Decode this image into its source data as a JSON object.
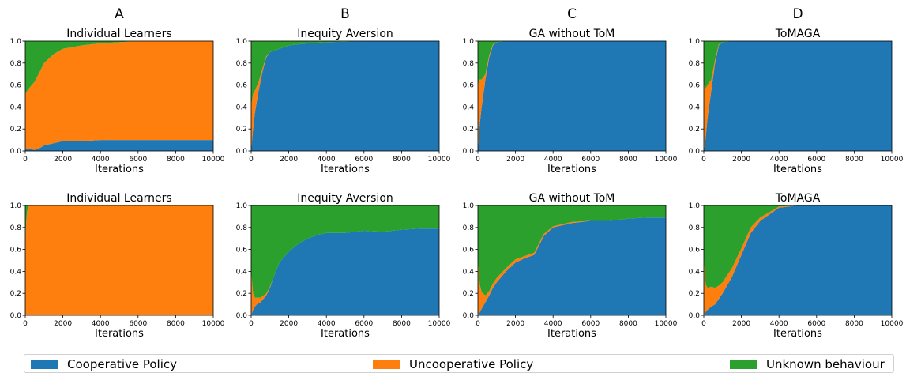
{
  "chart_data": {
    "type": "area",
    "stacked": true,
    "x_range": [
      0,
      10000
    ],
    "y_range": [
      0,
      1
    ],
    "xlabel": "Iterations",
    "xticks": [
      0,
      2000,
      4000,
      6000,
      8000,
      10000
    ],
    "yticks": [
      0.0,
      0.2,
      0.4,
      0.6,
      0.8,
      1.0
    ],
    "column_letters": [
      "A",
      "B",
      "C",
      "D"
    ],
    "colors": {
      "Cooperative Policy": "#1f77b4",
      "Uncooperative Policy": "#ff7f0e",
      "Unknown behaviour": "#2ca02c"
    },
    "legend": [
      "Cooperative Policy",
      "Uncooperative Policy",
      "Unknown behaviour"
    ],
    "panels": [
      {
        "row": 0,
        "col": 0,
        "title": "Individual Learners",
        "x": [
          0,
          200,
          500,
          800,
          1000,
          1500,
          2000,
          3000,
          4000,
          6000,
          8000,
          10000
        ],
        "series": [
          {
            "name": "Cooperative Policy",
            "values": [
              0.02,
              0.02,
              0.01,
              0.03,
              0.05,
              0.07,
              0.09,
              0.09,
              0.1,
              0.1,
              0.1,
              0.1
            ]
          },
          {
            "name": "Uncooperative Policy",
            "values": [
              0.5,
              0.55,
              0.62,
              0.7,
              0.75,
              0.81,
              0.84,
              0.87,
              0.88,
              0.9,
              0.9,
              0.9
            ]
          }
        ]
      },
      {
        "row": 0,
        "col": 1,
        "title": "Inequity Aversion",
        "x": [
          0,
          100,
          200,
          400,
          600,
          800,
          1000,
          1500,
          2000,
          3000,
          4000,
          6000,
          8000,
          10000
        ],
        "series": [
          {
            "name": "Cooperative Policy",
            "values": [
              0.0,
              0.2,
              0.35,
              0.55,
              0.72,
              0.85,
              0.9,
              0.93,
              0.96,
              0.98,
              0.99,
              1.0,
              1.0,
              1.0
            ]
          },
          {
            "name": "Uncooperative Policy",
            "values": [
              0.4,
              0.32,
              0.2,
              0.08,
              0.03,
              0.01,
              0.0,
              0.0,
              0.0,
              0.0,
              0.0,
              0.0,
              0.0,
              0.0
            ]
          }
        ]
      },
      {
        "row": 0,
        "col": 2,
        "title": "GA without ToM",
        "x": [
          0,
          100,
          200,
          400,
          600,
          800,
          1000,
          1500,
          2000,
          4000,
          6000,
          8000,
          10000
        ],
        "series": [
          {
            "name": "Cooperative Policy",
            "values": [
              0.0,
              0.25,
              0.4,
              0.65,
              0.85,
              0.96,
              0.99,
              1.0,
              1.0,
              1.0,
              1.0,
              1.0,
              1.0
            ]
          },
          {
            "name": "Uncooperative Policy",
            "values": [
              0.6,
              0.4,
              0.25,
              0.05,
              0.02,
              0.01,
              0.0,
              0.0,
              0.0,
              0.0,
              0.0,
              0.0,
              0.0
            ]
          }
        ]
      },
      {
        "row": 0,
        "col": 3,
        "title": "ToMAGA",
        "x": [
          0,
          100,
          200,
          400,
          600,
          800,
          1000,
          1500,
          2000,
          4000,
          6000,
          8000,
          10000
        ],
        "series": [
          {
            "name": "Cooperative Policy",
            "values": [
              0.0,
              0.12,
              0.3,
              0.55,
              0.8,
              0.96,
              0.99,
              1.0,
              1.0,
              1.0,
              1.0,
              1.0,
              1.0
            ]
          },
          {
            "name": "Uncooperative Policy",
            "values": [
              0.6,
              0.45,
              0.3,
              0.1,
              0.03,
              0.01,
              0.0,
              0.0,
              0.0,
              0.0,
              0.0,
              0.0,
              0.0
            ]
          }
        ]
      },
      {
        "row": 1,
        "col": 0,
        "title": "Individual Learners",
        "x": [
          0,
          50,
          100,
          200,
          500,
          1000,
          10000
        ],
        "series": [
          {
            "name": "Cooperative Policy",
            "values": [
              0,
              0,
              0,
              0,
              0,
              0,
              0
            ]
          },
          {
            "name": "Uncooperative Policy",
            "values": [
              0.65,
              0.85,
              0.95,
              1.0,
              1.0,
              1.0,
              1.0
            ]
          }
        ]
      },
      {
        "row": 1,
        "col": 1,
        "title": "Inequity Aversion",
        "x": [
          0,
          100,
          200,
          300,
          500,
          800,
          1000,
          1200,
          1500,
          2000,
          2500,
          3000,
          3500,
          4000,
          5000,
          6000,
          7000,
          8000,
          9000,
          10000
        ],
        "series": [
          {
            "name": "Cooperative Policy",
            "values": [
              0.0,
              0.05,
              0.08,
              0.1,
              0.12,
              0.18,
              0.25,
              0.35,
              0.48,
              0.58,
              0.65,
              0.7,
              0.73,
              0.75,
              0.75,
              0.77,
              0.76,
              0.78,
              0.79,
              0.79
            ]
          },
          {
            "name": "Uncooperative Policy",
            "values": [
              0.4,
              0.15,
              0.08,
              0.06,
              0.04,
              0.02,
              0.01,
              0.0,
              0.0,
              0.0,
              0.0,
              0.0,
              0.0,
              0.0,
              0.0,
              0.0,
              0.0,
              0.0,
              0.0,
              0.0
            ]
          }
        ]
      },
      {
        "row": 1,
        "col": 2,
        "title": "GA without ToM",
        "x": [
          0,
          100,
          200,
          400,
          600,
          800,
          1000,
          1500,
          2000,
          2500,
          3000,
          3500,
          4000,
          5000,
          6000,
          7000,
          8000,
          9000,
          10000
        ],
        "series": [
          {
            "name": "Cooperative Policy",
            "values": [
              0.0,
              0.03,
              0.06,
              0.12,
              0.18,
              0.25,
              0.3,
              0.4,
              0.48,
              0.52,
              0.55,
              0.72,
              0.8,
              0.84,
              0.86,
              0.86,
              0.88,
              0.89,
              0.89
            ]
          },
          {
            "name": "Uncooperative Policy",
            "values": [
              0.5,
              0.25,
              0.15,
              0.06,
              0.04,
              0.04,
              0.04,
              0.03,
              0.03,
              0.02,
              0.02,
              0.02,
              0.01,
              0.01,
              0.0,
              0.0,
              0.0,
              0.0,
              0.0
            ]
          }
        ]
      },
      {
        "row": 1,
        "col": 3,
        "title": "ToMAGA",
        "x": [
          0,
          100,
          200,
          400,
          600,
          800,
          1000,
          1500,
          2000,
          2500,
          3000,
          3500,
          4000,
          5000,
          6000,
          7000,
          8000,
          9000,
          10000
        ],
        "series": [
          {
            "name": "Cooperative Policy",
            "values": [
              0.0,
              0.03,
              0.05,
              0.08,
              0.1,
              0.15,
              0.2,
              0.35,
              0.55,
              0.75,
              0.86,
              0.92,
              0.98,
              1.0,
              1.0,
              1.0,
              1.0,
              1.0,
              1.0
            ]
          },
          {
            "name": "Uncooperative Policy",
            "values": [
              0.5,
              0.25,
              0.2,
              0.18,
              0.15,
              0.12,
              0.1,
              0.08,
              0.06,
              0.05,
              0.03,
              0.02,
              0.01,
              0.0,
              0.0,
              0.0,
              0.0,
              0.0,
              0.0
            ]
          }
        ]
      }
    ]
  }
}
